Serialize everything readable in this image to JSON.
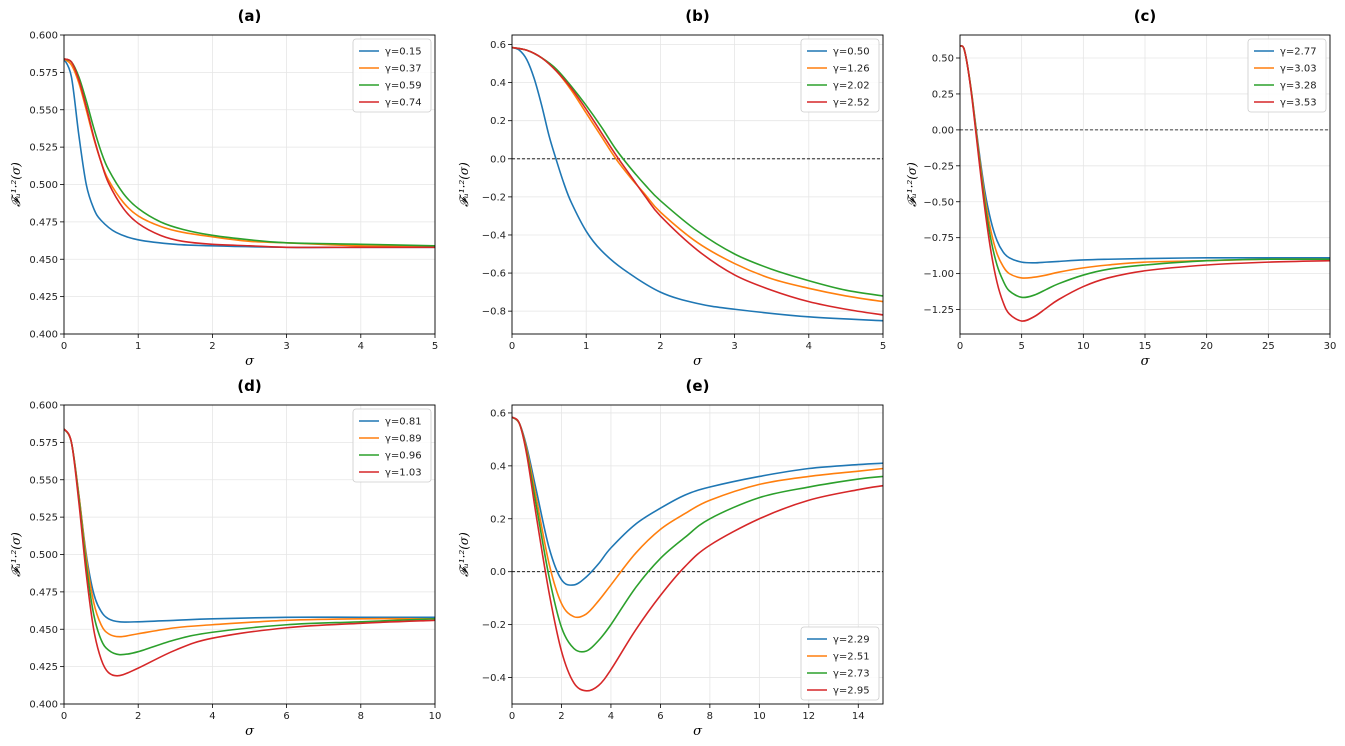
{
  "chart_data": [
    {
      "id": "a",
      "type": "line",
      "title": "(a)",
      "xlabel": "σ",
      "ylabel": "𝓕ᵤ¹·²(σ)",
      "xlim": [
        0,
        5
      ],
      "ylim": [
        0.4,
        0.6
      ],
      "xticks": [
        0,
        1,
        2,
        3,
        4,
        5
      ],
      "yticks": [
        0.4,
        0.425,
        0.45,
        0.475,
        0.5,
        0.525,
        0.55,
        0.575,
        0.6
      ],
      "ytick_labels": [
        "0.400",
        "0.425",
        "0.450",
        "0.475",
        "0.500",
        "0.525",
        "0.550",
        "0.575",
        "0.600"
      ],
      "zero_line": false,
      "legend_loc": "top-right",
      "series": [
        {
          "name": "γ=0.15",
          "color": "#1f77b4",
          "x": [
            0,
            0.1,
            0.2,
            0.3,
            0.4,
            0.5,
            0.7,
            1.0,
            1.5,
            2.0,
            3.0,
            4.0,
            5.0
          ],
          "y": [
            0.584,
            0.572,
            0.533,
            0.5,
            0.484,
            0.476,
            0.468,
            0.463,
            0.46,
            0.459,
            0.458,
            0.458,
            0.458
          ]
        },
        {
          "name": "γ=0.37",
          "color": "#ff7f0e",
          "x": [
            0,
            0.1,
            0.2,
            0.3,
            0.4,
            0.5,
            0.6,
            0.8,
            1.0,
            1.3,
            1.6,
            2.0,
            2.5,
            3.0,
            4.0,
            5.0
          ],
          "y": [
            0.584,
            0.58,
            0.568,
            0.55,
            0.531,
            0.515,
            0.503,
            0.488,
            0.479,
            0.472,
            0.468,
            0.465,
            0.462,
            0.461,
            0.459,
            0.459
          ]
        },
        {
          "name": "γ=0.59",
          "color": "#2ca02c",
          "x": [
            0,
            0.1,
            0.2,
            0.3,
            0.4,
            0.5,
            0.6,
            0.8,
            1.0,
            1.3,
            1.6,
            2.0,
            2.5,
            3.0,
            4.0,
            5.0
          ],
          "y": [
            0.584,
            0.582,
            0.572,
            0.556,
            0.538,
            0.522,
            0.51,
            0.494,
            0.484,
            0.475,
            0.47,
            0.466,
            0.463,
            0.461,
            0.46,
            0.459
          ]
        },
        {
          "name": "γ=0.74",
          "color": "#d62728",
          "x": [
            0,
            0.1,
            0.2,
            0.3,
            0.4,
            0.5,
            0.6,
            0.8,
            1.0,
            1.3,
            1.6,
            2.0,
            2.5,
            3.0,
            4.0,
            5.0
          ],
          "y": [
            0.584,
            0.582,
            0.57,
            0.552,
            0.532,
            0.515,
            0.501,
            0.484,
            0.474,
            0.466,
            0.462,
            0.46,
            0.459,
            0.458,
            0.458,
            0.458
          ]
        }
      ]
    },
    {
      "id": "b",
      "type": "line",
      "title": "(b)",
      "xlabel": "σ",
      "ylabel": "𝓕ᵤ¹·²(σ)",
      "xlim": [
        0,
        5
      ],
      "ylim": [
        -0.92,
        0.65
      ],
      "xticks": [
        0,
        1,
        2,
        3,
        4,
        5
      ],
      "yticks": [
        -0.8,
        -0.6,
        -0.4,
        -0.2,
        0.0,
        0.2,
        0.4,
        0.6
      ],
      "ytick_labels": [
        "−0.8",
        "−0.6",
        "−0.4",
        "−0.2",
        "0.0",
        "0.2",
        "0.4",
        "0.6"
      ],
      "zero_line": true,
      "legend_loc": "top-right",
      "series": [
        {
          "name": "γ=0.50",
          "color": "#1f77b4",
          "x": [
            0,
            0.1,
            0.2,
            0.3,
            0.4,
            0.5,
            0.6,
            0.7,
            0.8,
            1.0,
            1.2,
            1.5,
            2.0,
            2.5,
            3.0,
            4.0,
            5.0
          ],
          "y": [
            0.584,
            0.57,
            0.52,
            0.42,
            0.28,
            0.12,
            -0.01,
            -0.13,
            -0.23,
            -0.38,
            -0.48,
            -0.58,
            -0.7,
            -0.76,
            -0.79,
            -0.83,
            -0.85
          ]
        },
        {
          "name": "γ=1.26",
          "color": "#ff7f0e",
          "x": [
            0,
            0.2,
            0.4,
            0.6,
            0.8,
            1.0,
            1.2,
            1.4,
            1.6,
            1.8,
            2.0,
            2.5,
            3.0,
            3.5,
            4.0,
            4.5,
            5.0
          ],
          "y": [
            0.584,
            0.57,
            0.53,
            0.46,
            0.36,
            0.24,
            0.12,
            0.0,
            -0.1,
            -0.19,
            -0.28,
            -0.44,
            -0.55,
            -0.63,
            -0.68,
            -0.72,
            -0.75
          ]
        },
        {
          "name": "γ=2.02",
          "color": "#2ca02c",
          "x": [
            0,
            0.2,
            0.4,
            0.6,
            0.8,
            1.0,
            1.2,
            1.4,
            1.6,
            1.8,
            2.0,
            2.5,
            3.0,
            3.5,
            4.0,
            4.5,
            5.0
          ],
          "y": [
            0.584,
            0.57,
            0.53,
            0.47,
            0.38,
            0.28,
            0.17,
            0.05,
            -0.05,
            -0.14,
            -0.22,
            -0.38,
            -0.5,
            -0.58,
            -0.64,
            -0.69,
            -0.72
          ]
        },
        {
          "name": "γ=2.52",
          "color": "#d62728",
          "x": [
            0,
            0.2,
            0.4,
            0.6,
            0.8,
            1.0,
            1.2,
            1.4,
            1.6,
            1.8,
            2.0,
            2.5,
            3.0,
            3.5,
            4.0,
            4.5,
            5.0
          ],
          "y": [
            0.584,
            0.57,
            0.53,
            0.46,
            0.37,
            0.26,
            0.14,
            0.02,
            -0.09,
            -0.2,
            -0.3,
            -0.48,
            -0.61,
            -0.69,
            -0.75,
            -0.79,
            -0.82
          ]
        }
      ]
    },
    {
      "id": "c",
      "type": "line",
      "title": "(c)",
      "xlabel": "σ",
      "ylabel": "𝓕ᵤ¹·²(σ)",
      "xlim": [
        0,
        30
      ],
      "ylim": [
        -1.42,
        0.66
      ],
      "xticks": [
        0,
        5,
        10,
        15,
        20,
        25,
        30
      ],
      "yticks": [
        -1.25,
        -1.0,
        -0.75,
        -0.5,
        -0.25,
        0.0,
        0.25,
        0.5
      ],
      "ytick_labels": [
        "−1.25",
        "−1.00",
        "−0.75",
        "−0.50",
        "−0.25",
        "0.00",
        "0.25",
        "0.50"
      ],
      "zero_line": true,
      "legend_loc": "top-right",
      "series": [
        {
          "name": "γ=2.77",
          "color": "#1f77b4",
          "x": [
            0,
            0.3,
            0.6,
            1.0,
            1.5,
            2.0,
            2.5,
            3.0,
            3.5,
            4.0,
            5.0,
            6.0,
            7.0,
            8.0,
            10.0,
            12.0,
            15.0,
            20.0,
            25.0,
            30.0
          ],
          "y": [
            0.584,
            0.57,
            0.45,
            0.22,
            -0.12,
            -0.42,
            -0.63,
            -0.77,
            -0.85,
            -0.89,
            -0.92,
            -0.925,
            -0.92,
            -0.915,
            -0.905,
            -0.9,
            -0.895,
            -0.89,
            -0.89,
            -0.89
          ]
        },
        {
          "name": "γ=3.03",
          "color": "#ff7f0e",
          "x": [
            0,
            0.3,
            0.6,
            1.0,
            1.5,
            2.0,
            2.5,
            3.0,
            3.5,
            4.0,
            5.0,
            6.0,
            7.0,
            8.0,
            10.0,
            12.0,
            15.0,
            20.0,
            25.0,
            30.0
          ],
          "y": [
            0.584,
            0.57,
            0.45,
            0.22,
            -0.14,
            -0.46,
            -0.7,
            -0.86,
            -0.95,
            -1.0,
            -1.03,
            -1.025,
            -1.01,
            -0.99,
            -0.96,
            -0.94,
            -0.92,
            -0.91,
            -0.9,
            -0.9
          ]
        },
        {
          "name": "γ=3.28",
          "color": "#2ca02c",
          "x": [
            0,
            0.3,
            0.6,
            1.0,
            1.5,
            2.0,
            2.5,
            3.0,
            3.5,
            4.0,
            5.0,
            6.0,
            7.0,
            8.0,
            10.0,
            12.0,
            15.0,
            20.0,
            25.0,
            30.0
          ],
          "y": [
            0.584,
            0.57,
            0.45,
            0.21,
            -0.16,
            -0.5,
            -0.76,
            -0.94,
            -1.05,
            -1.12,
            -1.165,
            -1.15,
            -1.11,
            -1.07,
            -1.01,
            -0.97,
            -0.94,
            -0.91,
            -0.9,
            -0.9
          ]
        },
        {
          "name": "γ=3.53",
          "color": "#d62728",
          "x": [
            0,
            0.3,
            0.6,
            1.0,
            1.5,
            2.0,
            2.5,
            3.0,
            3.5,
            4.0,
            5.0,
            6.0,
            7.0,
            8.0,
            10.0,
            12.0,
            15.0,
            20.0,
            25.0,
            30.0
          ],
          "y": [
            0.584,
            0.57,
            0.45,
            0.2,
            -0.18,
            -0.54,
            -0.84,
            -1.06,
            -1.2,
            -1.28,
            -1.33,
            -1.3,
            -1.24,
            -1.18,
            -1.09,
            -1.03,
            -0.98,
            -0.94,
            -0.92,
            -0.91
          ]
        }
      ]
    },
    {
      "id": "d",
      "type": "line",
      "title": "(d)",
      "xlabel": "σ",
      "ylabel": "𝓕ᵤ¹·²(σ)",
      "xlim": [
        0,
        10
      ],
      "ylim": [
        0.4,
        0.6
      ],
      "xticks": [
        0,
        2,
        4,
        6,
        8,
        10
      ],
      "yticks": [
        0.4,
        0.425,
        0.45,
        0.475,
        0.5,
        0.525,
        0.55,
        0.575,
        0.6
      ],
      "ytick_labels": [
        "0.400",
        "0.425",
        "0.450",
        "0.475",
        "0.500",
        "0.525",
        "0.550",
        "0.575",
        "0.600"
      ],
      "zero_line": false,
      "legend_loc": "top-right",
      "series": [
        {
          "name": "γ=0.81",
          "color": "#1f77b4",
          "x": [
            0,
            0.2,
            0.4,
            0.6,
            0.8,
            1.0,
            1.2,
            1.5,
            2.0,
            3.0,
            4.0,
            6.0,
            8.0,
            10.0
          ],
          "y": [
            0.584,
            0.575,
            0.54,
            0.5,
            0.474,
            0.462,
            0.457,
            0.455,
            0.455,
            0.456,
            0.457,
            0.458,
            0.458,
            0.458
          ]
        },
        {
          "name": "γ=0.89",
          "color": "#ff7f0e",
          "x": [
            0,
            0.2,
            0.4,
            0.6,
            0.8,
            1.0,
            1.2,
            1.5,
            2.0,
            3.0,
            4.0,
            6.0,
            8.0,
            10.0
          ],
          "y": [
            0.584,
            0.575,
            0.54,
            0.498,
            0.468,
            0.453,
            0.447,
            0.445,
            0.447,
            0.451,
            0.453,
            0.456,
            0.457,
            0.457
          ]
        },
        {
          "name": "γ=0.96",
          "color": "#2ca02c",
          "x": [
            0,
            0.2,
            0.4,
            0.6,
            0.8,
            1.0,
            1.2,
            1.5,
            2.0,
            3.0,
            4.0,
            6.0,
            8.0,
            10.0
          ],
          "y": [
            0.584,
            0.575,
            0.538,
            0.493,
            0.46,
            0.443,
            0.436,
            0.433,
            0.435,
            0.443,
            0.448,
            0.453,
            0.455,
            0.457
          ]
        },
        {
          "name": "γ=1.03",
          "color": "#d62728",
          "x": [
            0,
            0.2,
            0.4,
            0.6,
            0.8,
            1.0,
            1.2,
            1.5,
            2.0,
            3.0,
            4.0,
            6.0,
            8.0,
            10.0
          ],
          "y": [
            0.584,
            0.575,
            0.535,
            0.487,
            0.45,
            0.43,
            0.421,
            0.419,
            0.424,
            0.436,
            0.444,
            0.451,
            0.454,
            0.456
          ]
        }
      ]
    },
    {
      "id": "e",
      "type": "line",
      "title": "(e)",
      "xlabel": "σ",
      "ylabel": "𝓕ᵤ¹·²(σ)",
      "xlim": [
        0,
        15
      ],
      "ylim": [
        -0.5,
        0.63
      ],
      "xticks": [
        0,
        2,
        4,
        6,
        8,
        10,
        12,
        14
      ],
      "yticks": [
        -0.4,
        -0.2,
        0.0,
        0.2,
        0.4,
        0.6
      ],
      "ytick_labels": [
        "−0.4",
        "−0.2",
        "0.0",
        "0.2",
        "0.4",
        "0.6"
      ],
      "zero_line": true,
      "legend_loc": "bottom-right",
      "series": [
        {
          "name": "γ=2.29",
          "color": "#1f77b4",
          "x": [
            0,
            0.3,
            0.6,
            1.0,
            1.5,
            2.0,
            2.5,
            3.0,
            3.5,
            4.0,
            5.0,
            6.0,
            7.0,
            8.0,
            10.0,
            12.0,
            14.0,
            15.0
          ],
          "y": [
            0.584,
            0.56,
            0.47,
            0.3,
            0.09,
            -0.03,
            -0.05,
            -0.02,
            0.03,
            0.09,
            0.18,
            0.24,
            0.29,
            0.32,
            0.36,
            0.39,
            0.405,
            0.41
          ]
        },
        {
          "name": "γ=2.51",
          "color": "#ff7f0e",
          "x": [
            0,
            0.3,
            0.6,
            1.0,
            1.5,
            2.0,
            2.5,
            3.0,
            3.5,
            4.0,
            5.0,
            6.0,
            7.0,
            8.0,
            10.0,
            12.0,
            14.0,
            15.0
          ],
          "y": [
            0.584,
            0.56,
            0.46,
            0.27,
            0.03,
            -0.12,
            -0.17,
            -0.16,
            -0.11,
            -0.05,
            0.07,
            0.16,
            0.22,
            0.27,
            0.33,
            0.36,
            0.38,
            0.39
          ]
        },
        {
          "name": "γ=2.73",
          "color": "#2ca02c",
          "x": [
            0,
            0.3,
            0.6,
            1.0,
            1.5,
            2.0,
            2.5,
            3.0,
            3.5,
            4.0,
            5.0,
            6.0,
            7.0,
            8.0,
            10.0,
            12.0,
            14.0,
            15.0
          ],
          "y": [
            0.584,
            0.56,
            0.45,
            0.24,
            -0.02,
            -0.21,
            -0.29,
            -0.3,
            -0.26,
            -0.2,
            -0.06,
            0.05,
            0.13,
            0.2,
            0.28,
            0.32,
            0.35,
            0.36
          ]
        },
        {
          "name": "γ=2.95",
          "color": "#d62728",
          "x": [
            0,
            0.3,
            0.6,
            1.0,
            1.5,
            2.0,
            2.5,
            3.0,
            3.5,
            4.0,
            5.0,
            6.0,
            7.0,
            8.0,
            10.0,
            12.0,
            14.0,
            15.0
          ],
          "y": [
            0.584,
            0.56,
            0.44,
            0.2,
            -0.08,
            -0.3,
            -0.42,
            -0.45,
            -0.43,
            -0.37,
            -0.22,
            -0.09,
            0.02,
            0.1,
            0.2,
            0.27,
            0.31,
            0.325
          ]
        }
      ]
    }
  ]
}
